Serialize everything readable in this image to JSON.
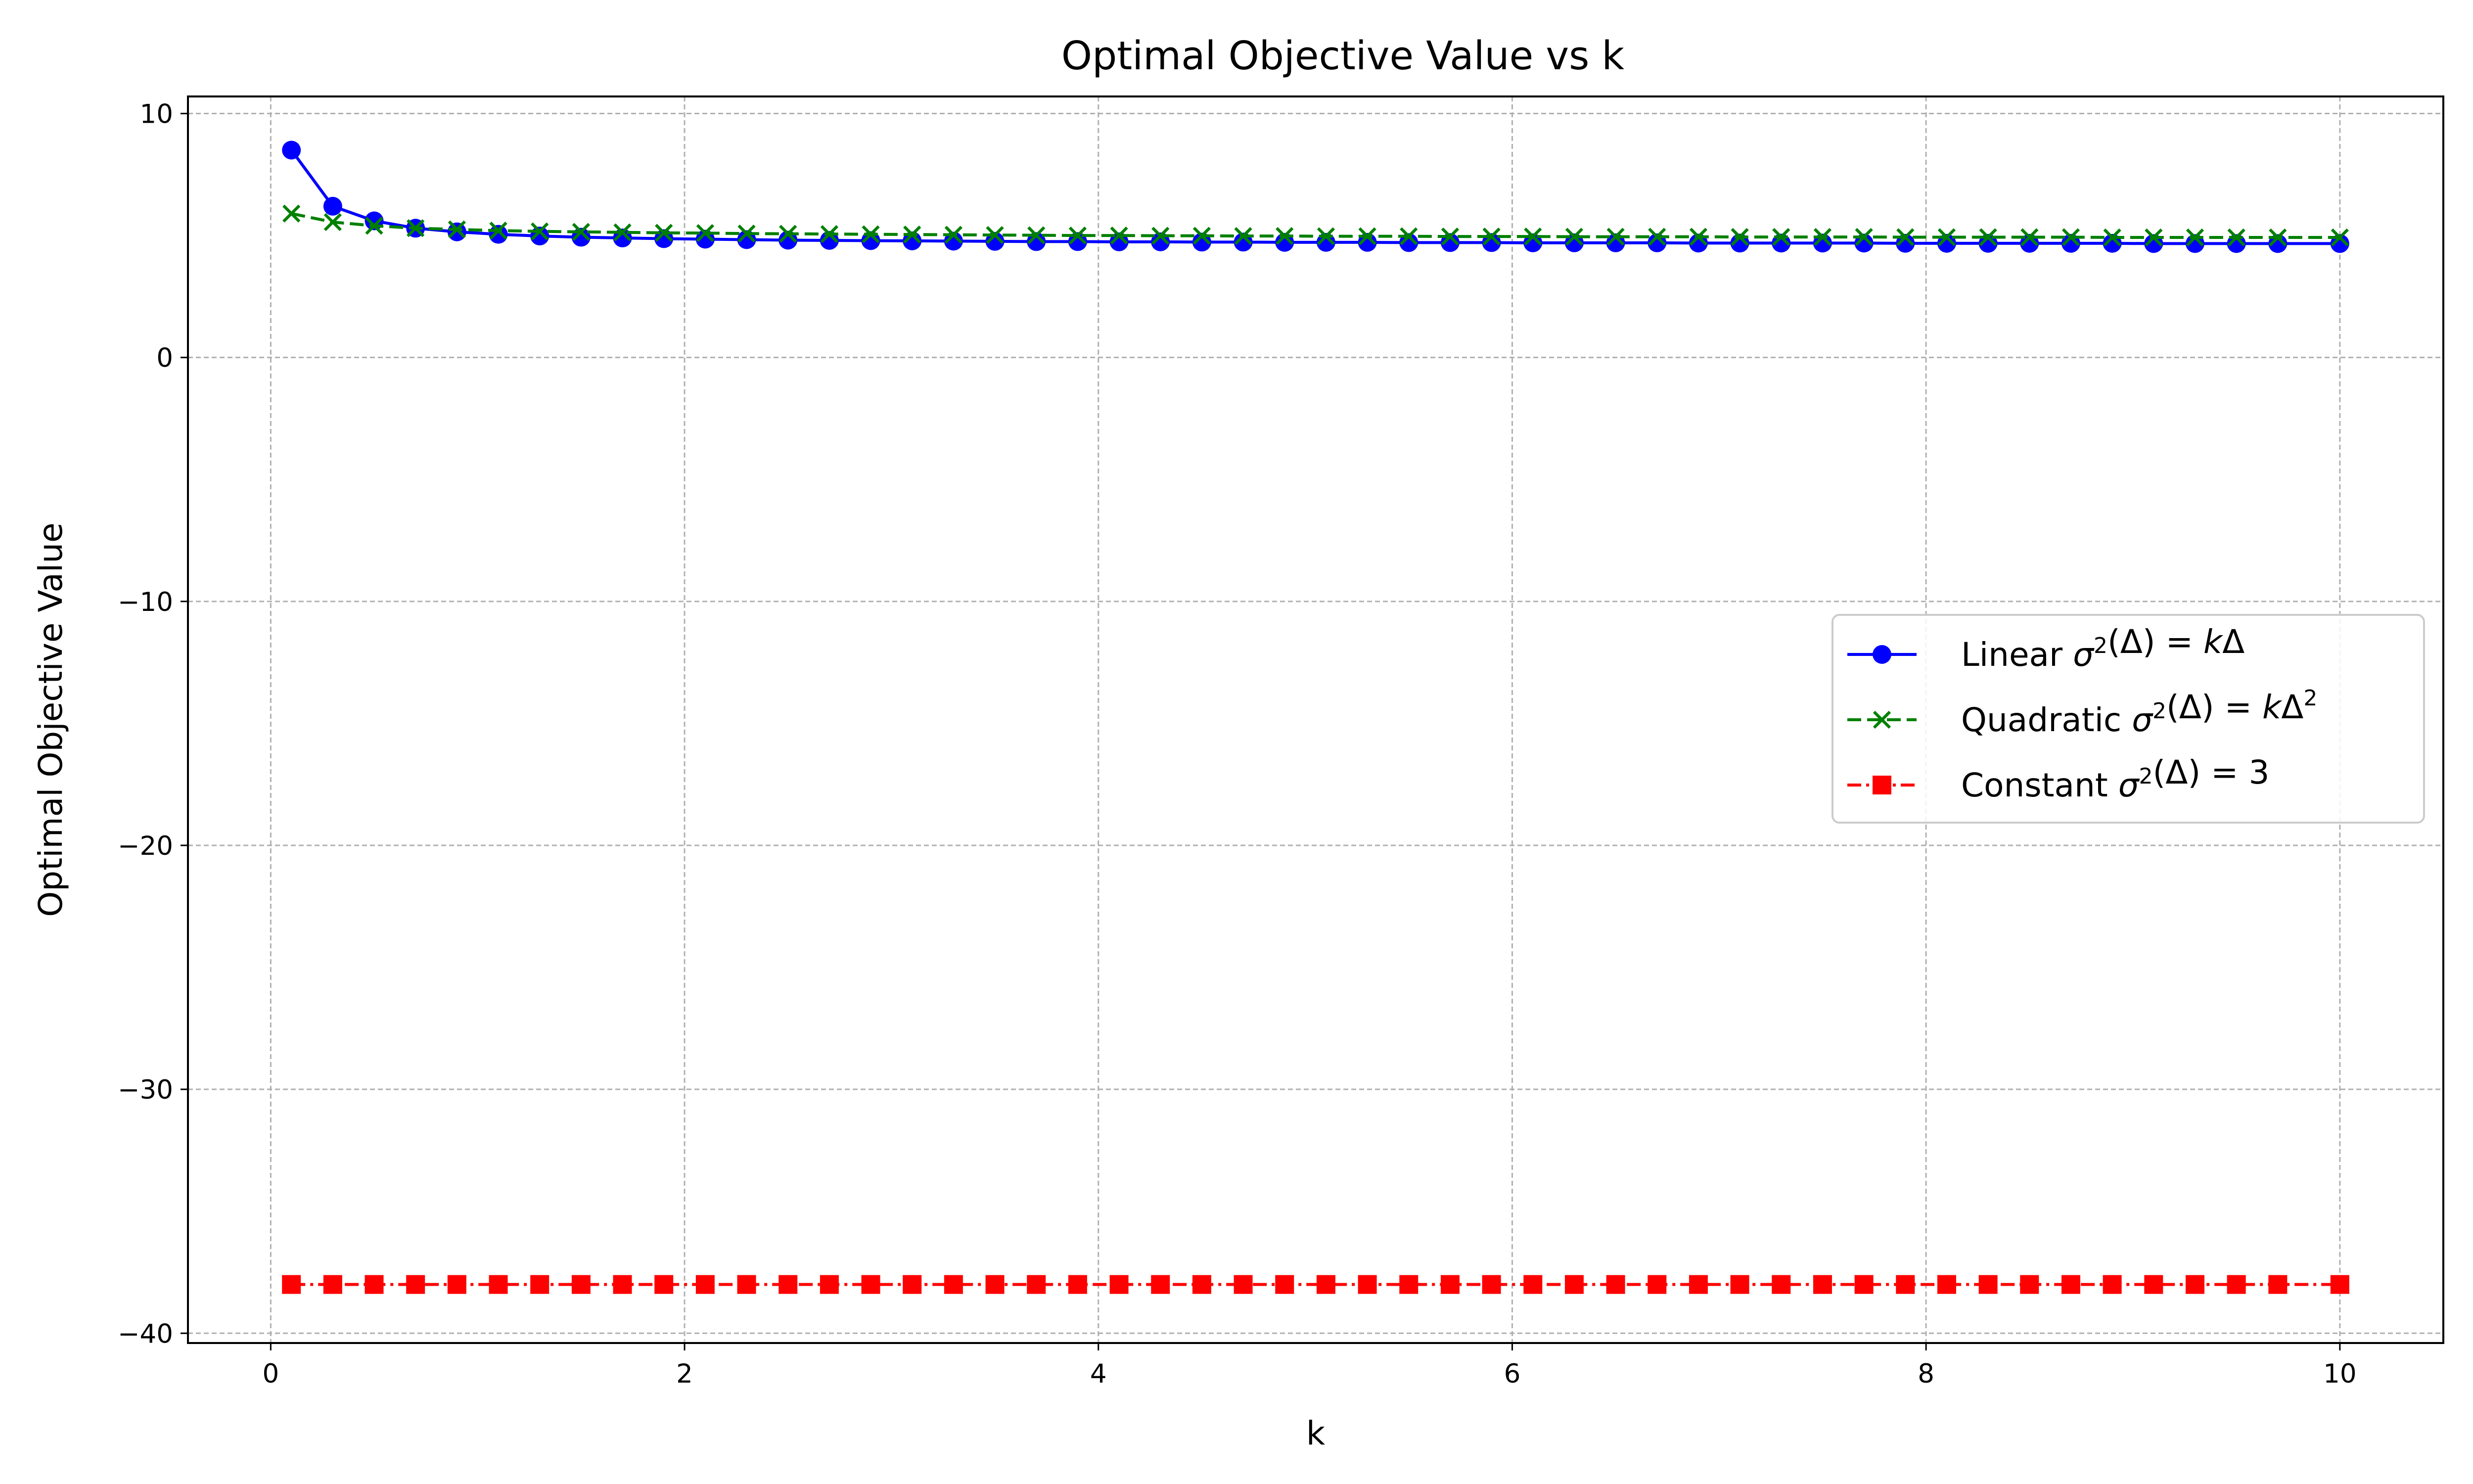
{
  "chart_data": {
    "type": "line",
    "title": "Optimal Objective Value vs k",
    "xlabel": "k",
    "ylabel": "Optimal Objective Value",
    "xlim": [
      -0.4,
      10.5
    ],
    "ylim": [
      -40.4,
      10.7
    ],
    "xticks": [
      0,
      2,
      4,
      6,
      8,
      10
    ],
    "yticks": [
      10,
      0,
      -10,
      -20,
      -30,
      -40
    ],
    "xtick_labels": [
      "0",
      "2",
      "4",
      "6",
      "8",
      "10"
    ],
    "ytick_labels": [
      "10",
      "0",
      "−10",
      "−20",
      "−30",
      "−40"
    ],
    "grid": true,
    "legend_position": "center-right",
    "x": [
      0.1,
      0.3,
      0.5,
      0.7,
      0.9,
      1.1,
      1.3,
      1.5,
      1.7,
      1.9,
      2.1,
      2.3,
      2.5,
      2.7,
      2.9,
      3.1,
      3.3,
      3.5,
      3.7,
      3.9,
      4.1,
      4.3,
      4.5,
      4.7,
      4.9,
      5.1,
      5.3,
      5.5,
      5.7,
      5.9,
      6.1,
      6.3,
      6.5,
      6.7,
      6.9,
      7.1,
      7.3,
      7.5,
      7.7,
      7.9,
      8.1,
      8.3,
      8.5,
      8.7,
      8.9,
      9.1,
      9.3,
      9.5,
      9.7,
      10.0
    ],
    "series": [
      {
        "name": "Linear σ²(Δ) = kΔ",
        "legend": {
          "prefix": "Linear ",
          "sigma": "σ",
          "sup": "2",
          "paren": "(Δ) = ",
          "k": "k",
          "tail": "Δ",
          "tail_sup": ""
        },
        "color": "#0000ff",
        "linestyle": "solid",
        "marker": "circle",
        "values": [
          8.5,
          6.2,
          5.6,
          5.3,
          5.15,
          5.05,
          4.98,
          4.93,
          4.9,
          4.87,
          4.85,
          4.83,
          4.81,
          4.8,
          4.79,
          4.78,
          4.77,
          4.76,
          4.75,
          4.75,
          4.74,
          4.74,
          4.73,
          4.73,
          4.72,
          4.72,
          4.72,
          4.71,
          4.71,
          4.71,
          4.7,
          4.7,
          4.7,
          4.7,
          4.69,
          4.69,
          4.69,
          4.69,
          4.69,
          4.68,
          4.68,
          4.68,
          4.68,
          4.68,
          4.68,
          4.67,
          4.67,
          4.67,
          4.67,
          4.67
        ]
      },
      {
        "name": "Quadratic σ²(Δ) = kΔ²",
        "legend": {
          "prefix": "Quadratic ",
          "sigma": "σ",
          "sup": "2",
          "paren": "(Δ) = ",
          "k": "k",
          "tail": "Δ",
          "tail_sup": "2"
        },
        "color": "#008000",
        "linestyle": "dashed",
        "marker": "x",
        "values": [
          5.9,
          5.55,
          5.4,
          5.3,
          5.25,
          5.2,
          5.17,
          5.15,
          5.13,
          5.11,
          5.1,
          5.08,
          5.07,
          5.06,
          5.05,
          5.04,
          5.03,
          5.02,
          5.01,
          5.0,
          5.0,
          4.99,
          4.99,
          4.98,
          4.98,
          4.97,
          4.97,
          4.97,
          4.96,
          4.96,
          4.96,
          4.95,
          4.95,
          4.95,
          4.95,
          4.94,
          4.94,
          4.94,
          4.94,
          4.93,
          4.93,
          4.93,
          4.93,
          4.93,
          4.92,
          4.92,
          4.92,
          4.92,
          4.92,
          4.92
        ]
      },
      {
        "name": "Constant σ²(Δ) = 3",
        "legend": {
          "prefix": "Constant ",
          "sigma": "σ",
          "sup": "2",
          "paren": "(Δ) = ",
          "k": "",
          "tail": "3",
          "tail_sup": ""
        },
        "color": "#ff0000",
        "linestyle": "dashdot",
        "marker": "square",
        "values": [
          -38,
          -38,
          -38,
          -38,
          -38,
          -38,
          -38,
          -38,
          -38,
          -38,
          -38,
          -38,
          -38,
          -38,
          -38,
          -38,
          -38,
          -38,
          -38,
          -38,
          -38,
          -38,
          -38,
          -38,
          -38,
          -38,
          -38,
          -38,
          -38,
          -38,
          -38,
          -38,
          -38,
          -38,
          -38,
          -38,
          -38,
          -38,
          -38,
          -38,
          -38,
          -38,
          -38,
          -38,
          -38,
          -38,
          -38,
          -38,
          -38,
          -38
        ]
      }
    ]
  }
}
